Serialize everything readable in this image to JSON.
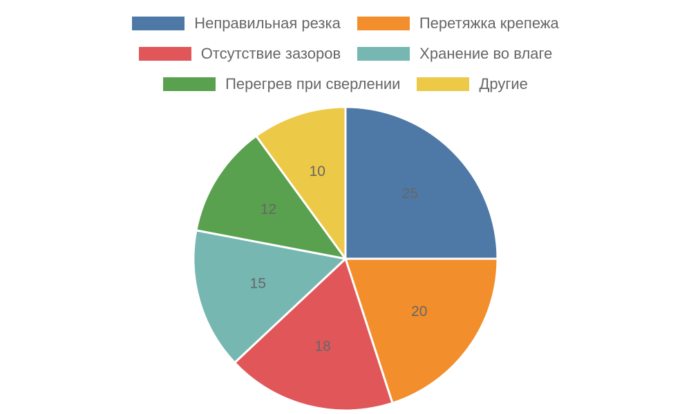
{
  "chart_data": {
    "type": "pie",
    "categories": [
      "Неправильная резка",
      "Перетяжка крепежа",
      "Отсутствие зазоров",
      "Хранение во влаге",
      "Перегрев при сверлении",
      "Другие"
    ],
    "values": [
      25,
      20,
      18,
      15,
      12,
      10
    ],
    "colors": [
      "#4e79a7",
      "#f28e2b",
      "#e15759",
      "#76b7b2",
      "#59a14f",
      "#edc948"
    ]
  }
}
